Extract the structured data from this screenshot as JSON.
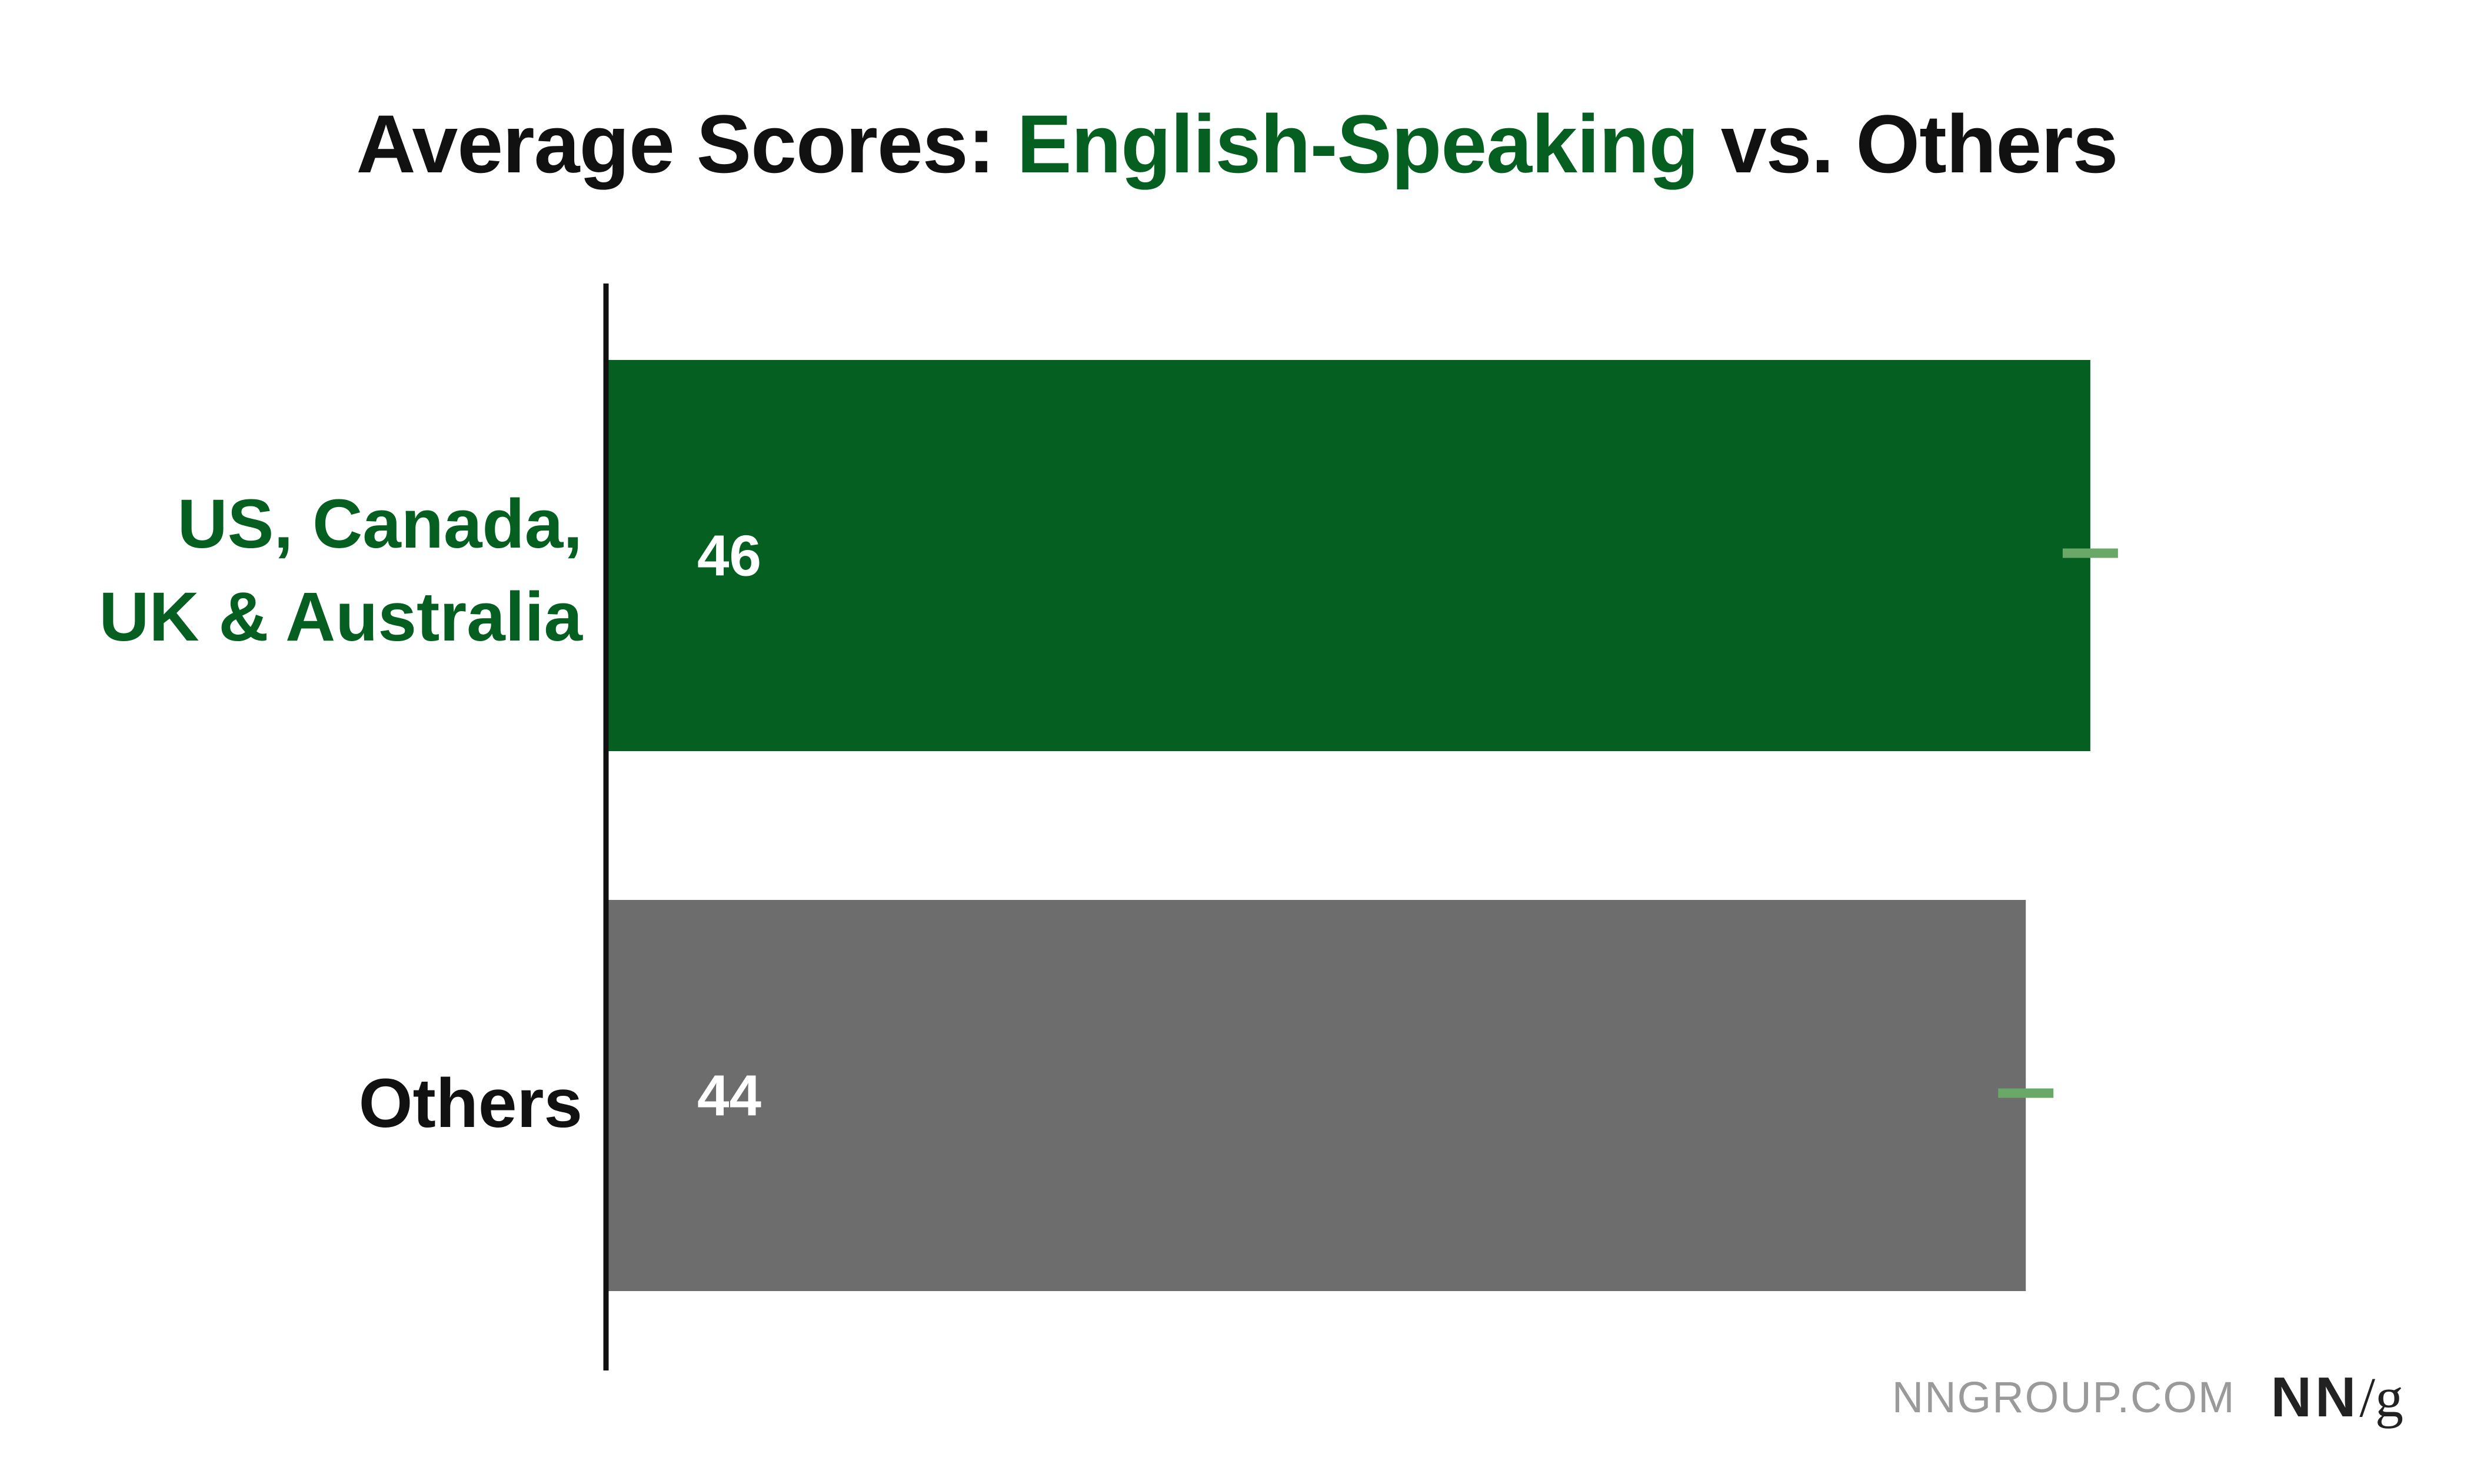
{
  "title": {
    "before": "Average Scores: ",
    "highlight": "English-Speaking",
    "after": " vs. Others",
    "highlight_color": "#045f20"
  },
  "chart_data": {
    "type": "bar",
    "orientation": "horizontal",
    "title": "Average Scores: English-Speaking vs. Others",
    "categories": [
      "US, Canada, UK & Australia",
      "Others"
    ],
    "category_label_lines": [
      [
        "US, Canada,",
        "UK & Australia"
      ],
      [
        "Others"
      ]
    ],
    "values": [
      46,
      44
    ],
    "data_labels": [
      "46",
      "44"
    ],
    "bar_colors": [
      "#045f20",
      "#6d6d6d"
    ],
    "label_colors": [
      "#045f20",
      "#111111"
    ],
    "error_bar_color": "#6aa867",
    "xlim": [
      0,
      48.5
    ],
    "grid": false,
    "legend": "none"
  },
  "footer": {
    "site": "NNGROUP.COM",
    "logo_nn": "NN",
    "logo_slash": "/",
    "logo_g": "g"
  }
}
